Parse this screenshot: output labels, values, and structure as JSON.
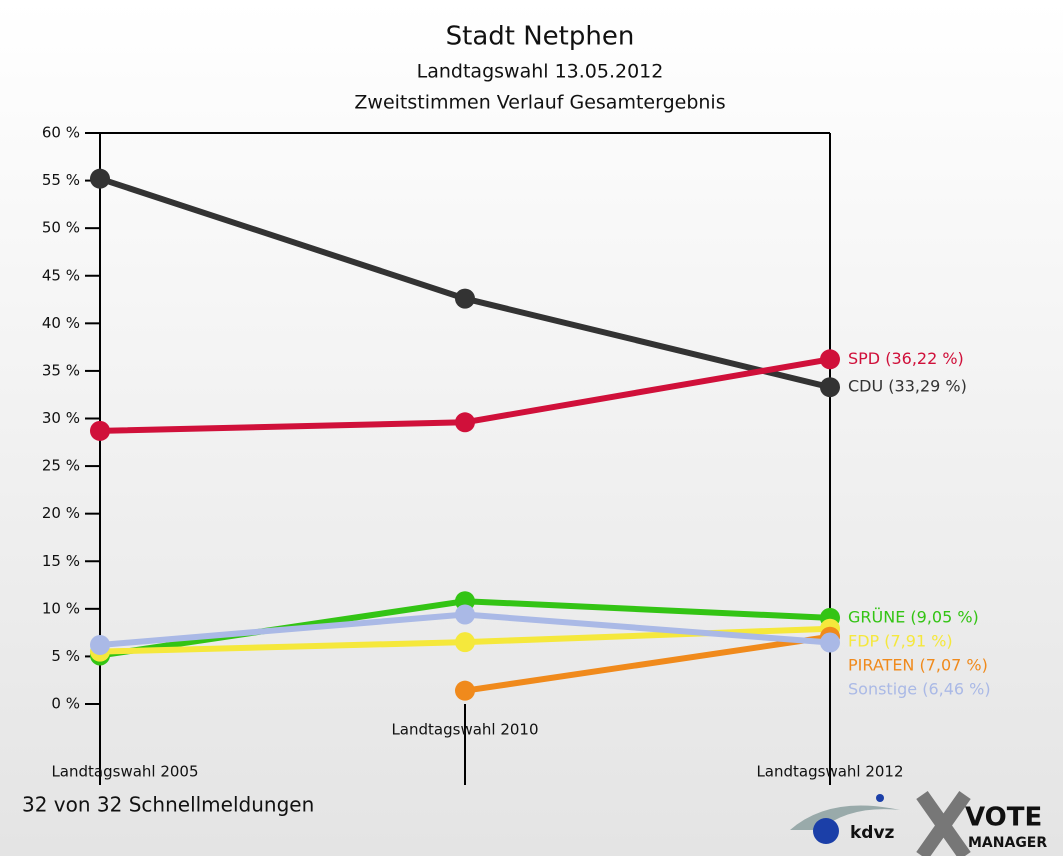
{
  "chart_data": {
    "type": "line",
    "title": "Stadt Netphen",
    "subtitle": "Landtagswahl 13.05.2012",
    "subtitle2": "Zweitstimmen Verlauf Gesamtergebnis",
    "categories": [
      "Landtagswahl 2005",
      "Landtagswahl 2010",
      "Landtagswahl 2012"
    ],
    "ylim": [
      0,
      60
    ],
    "yticks": [
      {
        "value": 0,
        "label": "0 %"
      },
      {
        "value": 5,
        "label": "5 %"
      },
      {
        "value": 10,
        "label": "10 %"
      },
      {
        "value": 15,
        "label": "15 %"
      },
      {
        "value": 20,
        "label": "20 %"
      },
      {
        "value": 25,
        "label": "25 %"
      },
      {
        "value": 30,
        "label": "30 %"
      },
      {
        "value": 35,
        "label": "35 %"
      },
      {
        "value": 40,
        "label": "40 %"
      },
      {
        "value": 45,
        "label": "45 %"
      },
      {
        "value": 50,
        "label": "50 %"
      },
      {
        "value": 55,
        "label": "55 %"
      },
      {
        "value": 60,
        "label": "60 %"
      }
    ],
    "series": [
      {
        "name": "CDU",
        "color": "#333333",
        "values": [
          55.2,
          42.6,
          33.29
        ],
        "value_labels": [
          null,
          null,
          "CDU (33,29 %)"
        ]
      },
      {
        "name": "SPD",
        "color": "#d0103a",
        "values": [
          28.7,
          29.6,
          36.22
        ],
        "value_labels": [
          null,
          null,
          "SPD (36,22 %)"
        ]
      },
      {
        "name": "GRÜNE",
        "color": "#33c414",
        "values": [
          5.1,
          10.8,
          9.05
        ],
        "value_labels": [
          null,
          null,
          "GRÜNE (9,05 %)"
        ]
      },
      {
        "name": "FDP",
        "color": "#f5e83c",
        "values": [
          5.5,
          6.5,
          7.91
        ],
        "value_labels": [
          null,
          null,
          "FDP (7,91 %)"
        ]
      },
      {
        "name": "PIRATEN",
        "color": "#f08a1c",
        "values": [
          null,
          1.4,
          7.07
        ],
        "value_labels": [
          null,
          null,
          "PIRATEN (7,07 %)"
        ]
      },
      {
        "name": "Sonstige",
        "color": "#aab9e6",
        "values": [
          6.2,
          9.4,
          6.46
        ],
        "value_labels": [
          null,
          null,
          "Sonstige (6,46 %)"
        ]
      }
    ],
    "footer": "32 von 32 Schnellmeldungen",
    "logo": {
      "brand": "kdvz",
      "product": "VOTE",
      "product_sub": "MANAGER"
    }
  }
}
